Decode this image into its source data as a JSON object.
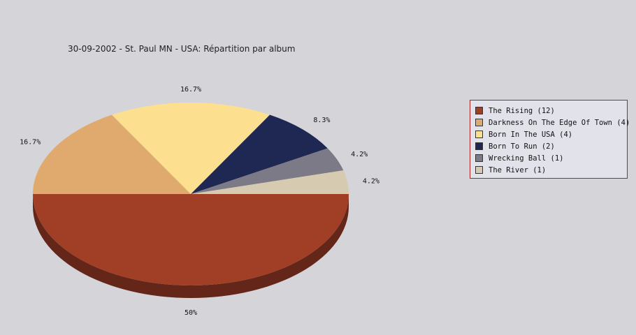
{
  "chart_data": {
    "type": "pie",
    "title": "30-09-2002 - St. Paul MN - USA:  Répartition par album",
    "slices": [
      {
        "label": "The Rising (12)",
        "value": 12,
        "percent_label": "50%",
        "color": "#a03e26"
      },
      {
        "label": "Darkness On The Edge Of Town (4)",
        "value": 4,
        "percent_label": "16.7%",
        "color": "#e0aa6e"
      },
      {
        "label": "Born In The USA (4)",
        "value": 4,
        "percent_label": "16.7%",
        "color": "#fddf90"
      },
      {
        "label": "Born To Run (2)",
        "value": 2,
        "percent_label": "8.3%",
        "color": "#1f2852"
      },
      {
        "label": "Wrecking Ball (1)",
        "value": 1,
        "percent_label": "4.2%",
        "color": "#7c7a86"
      },
      {
        "label": "The River (1)",
        "value": 1,
        "percent_label": "4.2%",
        "color": "#d6cbb0"
      }
    ],
    "legend_position": "right",
    "style": "3d"
  }
}
